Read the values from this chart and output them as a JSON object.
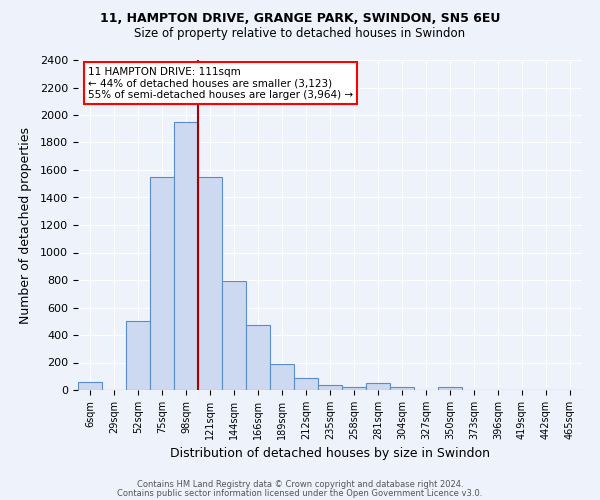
{
  "title1": "11, HAMPTON DRIVE, GRANGE PARK, SWINDON, SN5 6EU",
  "title2": "Size of property relative to detached houses in Swindon",
  "xlabel": "Distribution of detached houses by size in Swindon",
  "ylabel": "Number of detached properties",
  "categories": [
    "6sqm",
    "29sqm",
    "52sqm",
    "75sqm",
    "98sqm",
    "121sqm",
    "144sqm",
    "166sqm",
    "189sqm",
    "212sqm",
    "235sqm",
    "258sqm",
    "281sqm",
    "304sqm",
    "327sqm",
    "350sqm",
    "373sqm",
    "396sqm",
    "419sqm",
    "442sqm",
    "465sqm"
  ],
  "values": [
    60,
    0,
    500,
    1550,
    1950,
    1550,
    790,
    470,
    190,
    90,
    35,
    25,
    50,
    20,
    0,
    20,
    0,
    0,
    0,
    0,
    0
  ],
  "bar_color": "#ccd9f0",
  "bar_edge_color": "#5b8dc8",
  "vline_x_index": 4.5,
  "vline_color": "#aa0000",
  "annotation_text": "11 HAMPTON DRIVE: 111sqm\n← 44% of detached houses are smaller (3,123)\n55% of semi-detached houses are larger (3,964) →",
  "annotation_box_color": "white",
  "annotation_box_edge_color": "red",
  "ylim": [
    0,
    2400
  ],
  "yticks": [
    0,
    200,
    400,
    600,
    800,
    1000,
    1200,
    1400,
    1600,
    1800,
    2000,
    2200,
    2400
  ],
  "footnote1": "Contains HM Land Registry data © Crown copyright and database right 2024.",
  "footnote2": "Contains public sector information licensed under the Open Government Licence v3.0.",
  "bg_color": "#eef2fb",
  "grid_color": "white"
}
